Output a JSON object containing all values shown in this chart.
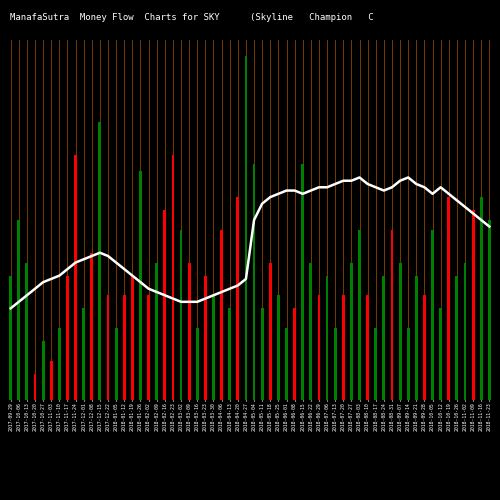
{
  "title_left": "ManafaSutra  Money Flow  Charts for SKY",
  "title_right": "(Skyline   Champion   C",
  "background_color": "#000000",
  "bar_line_color": "#8B4500",
  "line_color": "#FFFFFF",
  "bar_colors": [
    "green",
    "green",
    "green",
    "red",
    "green",
    "red",
    "green",
    "red",
    "red",
    "green",
    "red",
    "green",
    "red",
    "green",
    "red",
    "red",
    "green",
    "red",
    "green",
    "red",
    "red",
    "green",
    "red",
    "green",
    "red",
    "green",
    "red",
    "green",
    "red",
    "green",
    "green",
    "green",
    "red",
    "green",
    "green",
    "red",
    "green",
    "green",
    "red",
    "green",
    "green",
    "red",
    "green",
    "green",
    "red",
    "green",
    "green",
    "red",
    "green",
    "green",
    "green",
    "red",
    "green",
    "green",
    "red",
    "green",
    "green",
    "red",
    "green",
    "green"
  ],
  "bar_heights": [
    38,
    55,
    42,
    8,
    18,
    12,
    22,
    38,
    75,
    28,
    45,
    85,
    32,
    22,
    32,
    38,
    70,
    32,
    42,
    58,
    75,
    52,
    42,
    22,
    38,
    32,
    52,
    28,
    62,
    105,
    72,
    28,
    42,
    32,
    22,
    28,
    72,
    42,
    32,
    38,
    22,
    32,
    42,
    52,
    32,
    22,
    38,
    52,
    42,
    22,
    38,
    32,
    52,
    28,
    62,
    38,
    42,
    58,
    62,
    55
  ],
  "price_line_y": [
    28,
    30,
    32,
    34,
    36,
    37,
    38,
    40,
    42,
    43,
    44,
    45,
    44,
    42,
    40,
    38,
    36,
    34,
    33,
    32,
    31,
    30,
    30,
    30,
    31,
    32,
    33,
    34,
    35,
    37,
    55,
    60,
    62,
    63,
    64,
    64,
    63,
    64,
    65,
    65,
    66,
    67,
    67,
    68,
    66,
    65,
    64,
    65,
    67,
    68,
    66,
    65,
    63,
    65,
    63,
    61,
    59,
    57,
    55,
    53
  ],
  "n_bars": 60,
  "ylim": [
    0,
    110
  ],
  "xlabel_fontsize": 3.5,
  "title_fontsize": 6.5,
  "labels": [
    "2017-09-29",
    "2017-10-06",
    "2017-10-13",
    "2017-10-20",
    "2017-10-27",
    "2017-11-03",
    "2017-11-10",
    "2017-11-17",
    "2017-11-24",
    "2017-12-01",
    "2017-12-08",
    "2017-12-15",
    "2017-12-22",
    "2018-01-05",
    "2018-01-12",
    "2018-01-19",
    "2018-01-26",
    "2018-02-02",
    "2018-02-09",
    "2018-02-16",
    "2018-02-23",
    "2018-03-02",
    "2018-03-09",
    "2018-03-16",
    "2018-03-23",
    "2018-03-30",
    "2018-04-06",
    "2018-04-13",
    "2018-04-20",
    "2018-04-27",
    "2018-05-04",
    "2018-05-11",
    "2018-05-18",
    "2018-05-25",
    "2018-06-01",
    "2018-06-08",
    "2018-06-15",
    "2018-06-22",
    "2018-06-29",
    "2018-07-06",
    "2018-07-13",
    "2018-07-20",
    "2018-07-27",
    "2018-08-03",
    "2018-08-10",
    "2018-08-17",
    "2018-08-24",
    "2018-08-31",
    "2018-09-07",
    "2018-09-14",
    "2018-09-21",
    "2018-09-28",
    "2018-10-05",
    "2018-10-12",
    "2018-10-19",
    "2018-10-26",
    "2018-11-02",
    "2018-11-09",
    "2018-11-16",
    "2018-11-23"
  ]
}
